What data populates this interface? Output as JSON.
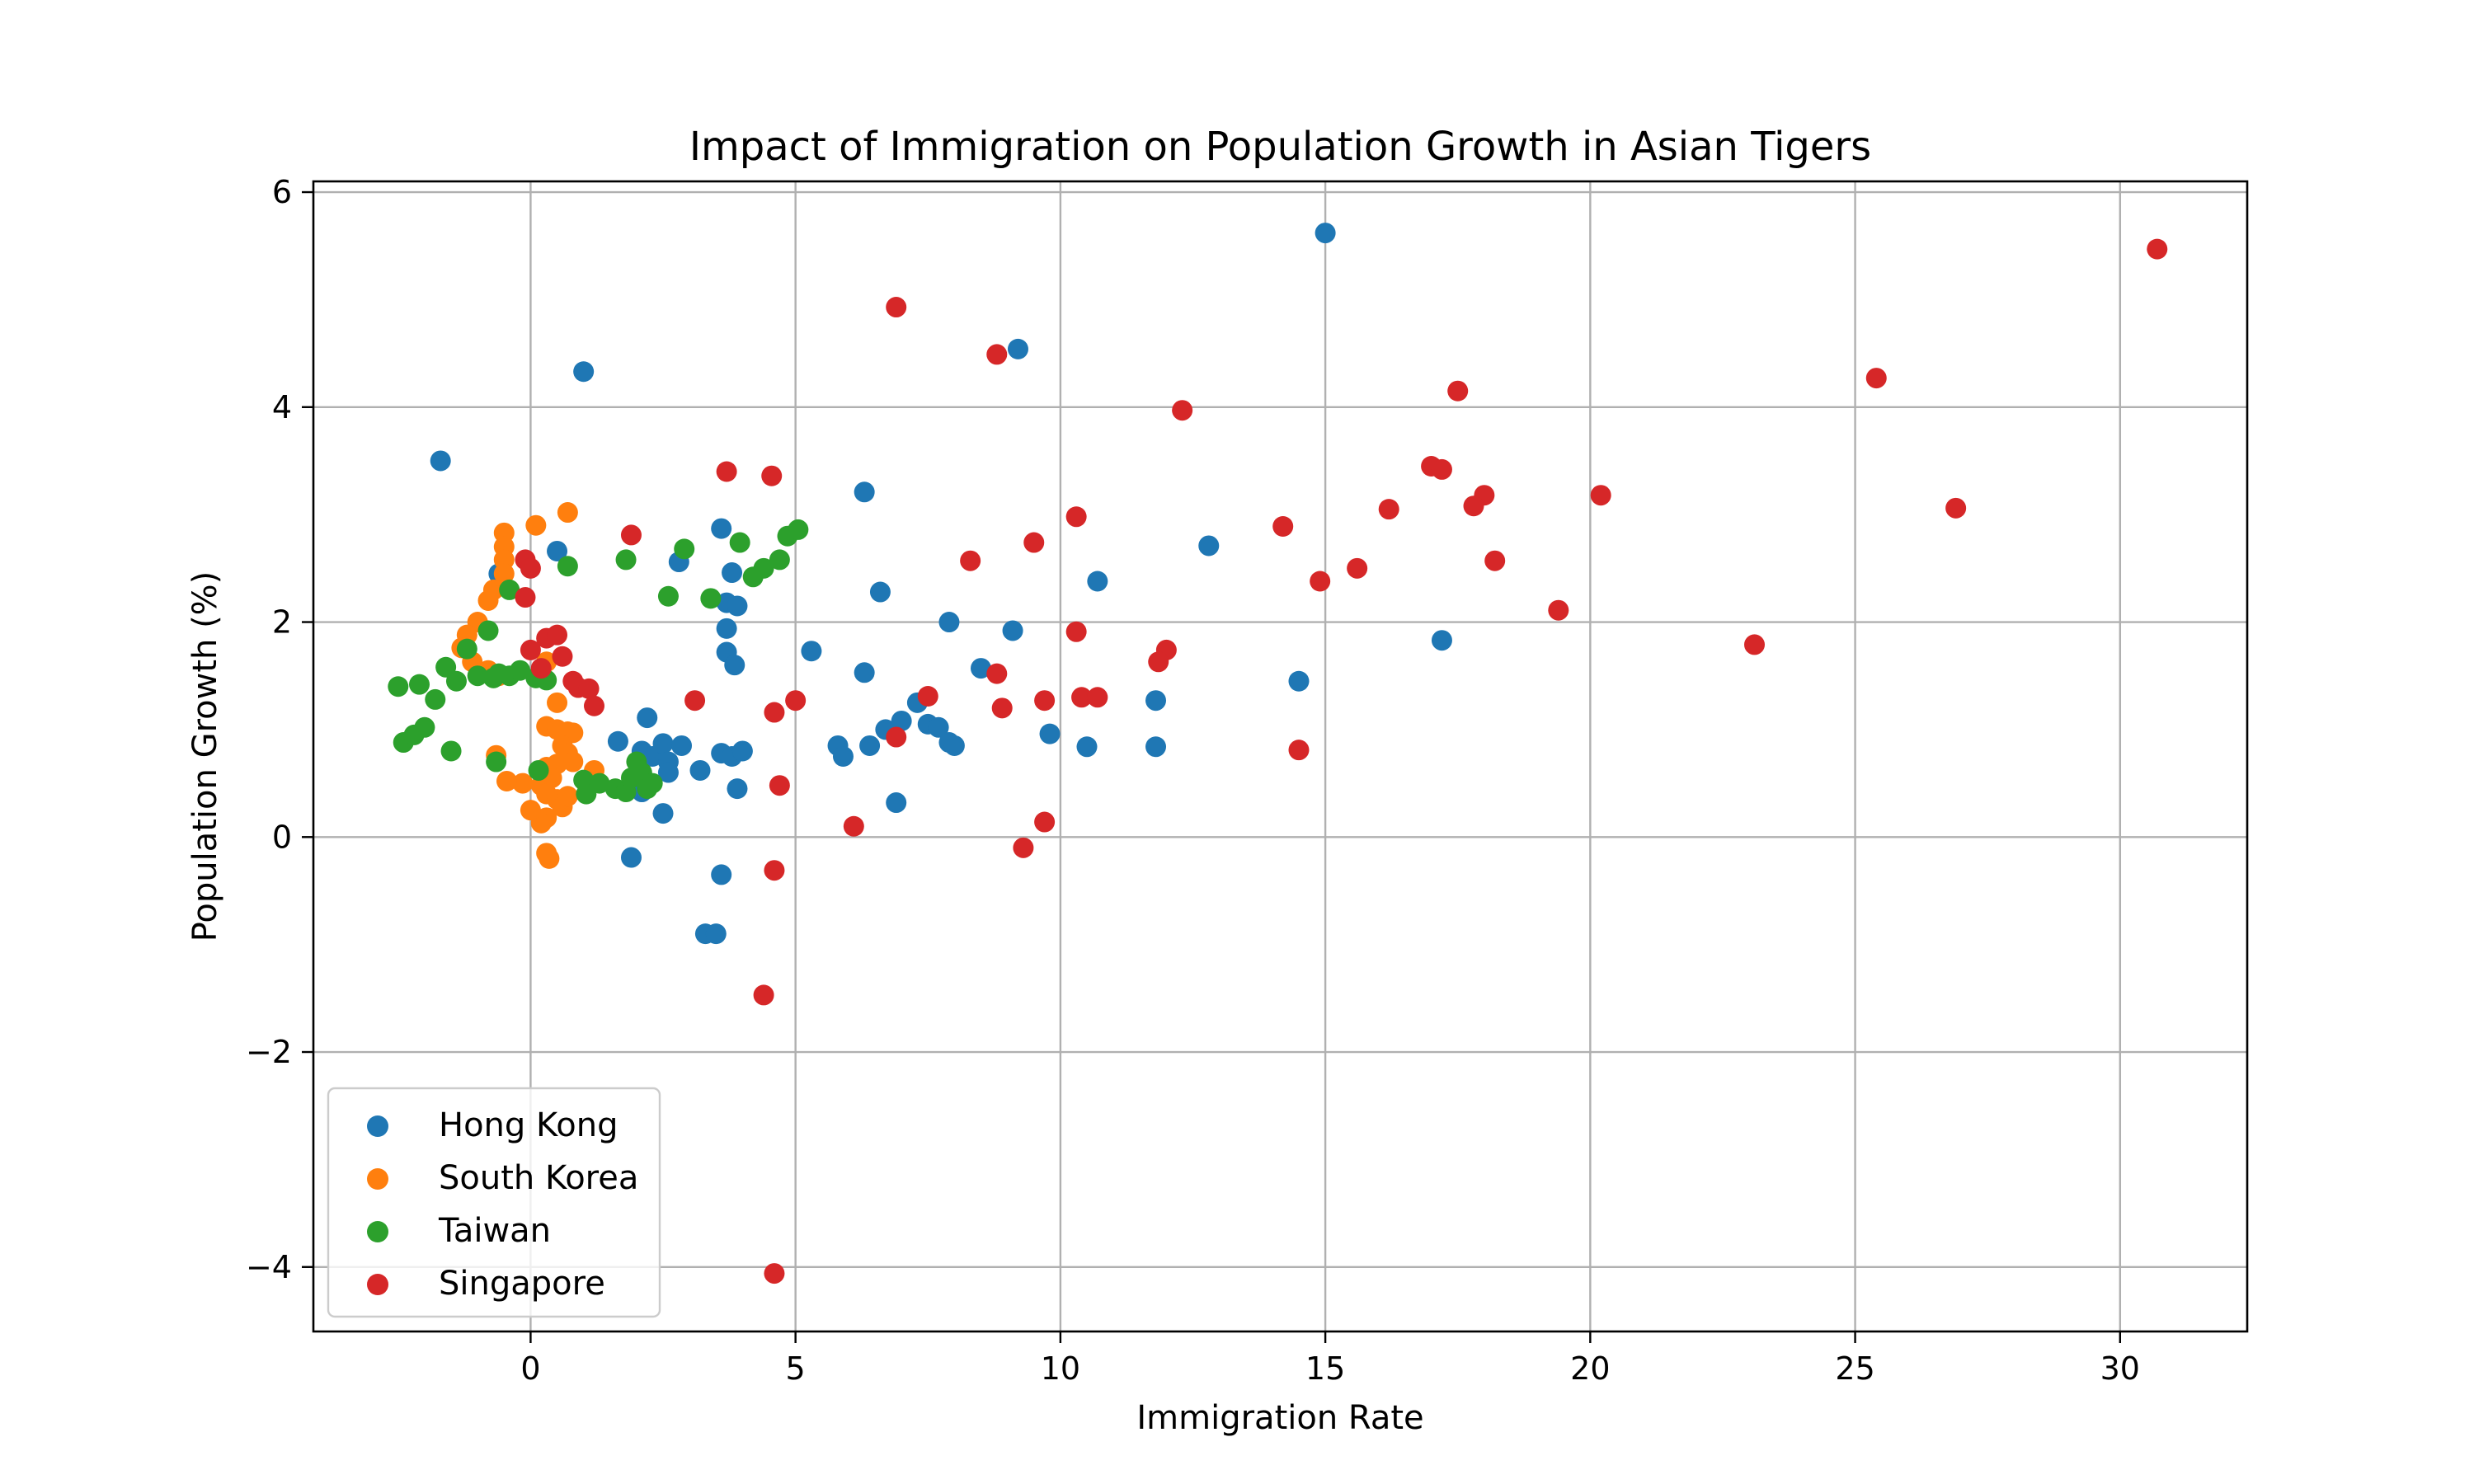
{
  "chart_data": {
    "type": "scatter",
    "title": "Impact of Immigration on Population Growth in Asian Tigers",
    "xlabel": "Immigration Rate",
    "ylabel": "Population Growth (%)",
    "xlim": [
      -4.1,
      32.4
    ],
    "ylim": [
      -4.6,
      6.1
    ],
    "xticks": [
      0,
      5,
      10,
      15,
      20,
      25,
      30
    ],
    "yticks": [
      -4,
      -2,
      0,
      2,
      4,
      6
    ],
    "xtick_labels": [
      "0",
      "5",
      "10",
      "15",
      "20",
      "25",
      "30"
    ],
    "ytick_labels": [
      "−4",
      "−2",
      "0",
      "2",
      "4",
      "6"
    ],
    "grid": true,
    "legend_position": "lower-left",
    "series": [
      {
        "name": "Hong Kong",
        "color": "#1f77b4",
        "points": [
          [
            -1.7,
            3.5
          ],
          [
            1.0,
            4.33
          ],
          [
            15.0,
            5.62
          ],
          [
            9.2,
            4.54
          ],
          [
            -0.6,
            2.45
          ],
          [
            0.5,
            2.66
          ],
          [
            2.8,
            2.56
          ],
          [
            3.6,
            2.87
          ],
          [
            3.8,
            2.46
          ],
          [
            3.7,
            2.18
          ],
          [
            3.9,
            2.15
          ],
          [
            3.7,
            1.94
          ],
          [
            3.7,
            1.72
          ],
          [
            3.85,
            1.6
          ],
          [
            6.3,
            3.21
          ],
          [
            6.6,
            2.28
          ],
          [
            7.9,
            2.0
          ],
          [
            9.1,
            1.92
          ],
          [
            10.7,
            2.38
          ],
          [
            12.8,
            2.71
          ],
          [
            17.2,
            1.83
          ],
          [
            14.5,
            1.45
          ],
          [
            11.8,
            1.27
          ],
          [
            11.8,
            0.84
          ],
          [
            10.5,
            0.84
          ],
          [
            9.8,
            0.96
          ],
          [
            8.5,
            1.57
          ],
          [
            7.3,
            1.25
          ],
          [
            7.5,
            1.05
          ],
          [
            7.7,
            1.02
          ],
          [
            7.9,
            0.88
          ],
          [
            8.0,
            0.85
          ],
          [
            7.0,
            1.08
          ],
          [
            6.7,
            1.0
          ],
          [
            6.4,
            0.85
          ],
          [
            6.3,
            1.53
          ],
          [
            5.3,
            1.73
          ],
          [
            5.8,
            0.85
          ],
          [
            5.9,
            0.75
          ],
          [
            6.9,
            0.32
          ],
          [
            2.2,
            1.11
          ],
          [
            1.65,
            0.89
          ],
          [
            2.1,
            0.8
          ],
          [
            2.3,
            0.75
          ],
          [
            2.5,
            0.87
          ],
          [
            2.6,
            0.7
          ],
          [
            2.6,
            0.6
          ],
          [
            2.5,
            0.22
          ],
          [
            2.85,
            0.85
          ],
          [
            3.2,
            0.62
          ],
          [
            3.6,
            0.78
          ],
          [
            3.8,
            0.75
          ],
          [
            4.0,
            0.8
          ],
          [
            3.9,
            0.45
          ],
          [
            2.1,
            0.42
          ],
          [
            1.9,
            -0.19
          ],
          [
            3.6,
            -0.35
          ],
          [
            3.3,
            -0.9
          ],
          [
            3.5,
            -0.9
          ]
        ]
      },
      {
        "name": "South Korea",
        "color": "#ff7f0e",
        "points": [
          [
            -0.5,
            2.83
          ],
          [
            -0.5,
            2.7
          ],
          [
            -0.5,
            2.58
          ],
          [
            -0.5,
            2.45
          ],
          [
            -0.7,
            2.3
          ],
          [
            -0.8,
            2.2
          ],
          [
            -1.0,
            2.0
          ],
          [
            -1.2,
            1.88
          ],
          [
            -1.3,
            1.76
          ],
          [
            -1.1,
            1.63
          ],
          [
            -0.8,
            1.55
          ],
          [
            -0.6,
            1.5
          ],
          [
            0.1,
            2.9
          ],
          [
            0.7,
            3.02
          ],
          [
            0.3,
            1.63
          ],
          [
            0.5,
            1.25
          ],
          [
            0.3,
            1.03
          ],
          [
            0.5,
            1.0
          ],
          [
            0.7,
            0.98
          ],
          [
            0.8,
            0.97
          ],
          [
            0.6,
            0.85
          ],
          [
            0.7,
            0.78
          ],
          [
            0.8,
            0.7
          ],
          [
            0.5,
            0.68
          ],
          [
            0.3,
            0.65
          ],
          [
            0.4,
            0.55
          ],
          [
            0.2,
            0.48
          ],
          [
            0.3,
            0.4
          ],
          [
            0.5,
            0.35
          ],
          [
            0.6,
            0.28
          ],
          [
            0.3,
            0.18
          ],
          [
            0.2,
            0.13
          ],
          [
            0.0,
            0.25
          ],
          [
            -0.15,
            0.5
          ],
          [
            -0.45,
            0.52
          ],
          [
            -0.65,
            0.76
          ],
          [
            0.3,
            -0.15
          ],
          [
            0.35,
            -0.2
          ],
          [
            0.7,
            0.38
          ],
          [
            1.2,
            0.62
          ]
        ]
      },
      {
        "name": "Taiwan",
        "color": "#2ca02c",
        "points": [
          [
            -2.5,
            1.4
          ],
          [
            -2.1,
            1.42
          ],
          [
            -1.8,
            1.28
          ],
          [
            -1.6,
            1.58
          ],
          [
            -1.4,
            1.45
          ],
          [
            -1.2,
            1.75
          ],
          [
            -1.0,
            1.5
          ],
          [
            -0.7,
            1.48
          ],
          [
            -0.6,
            1.52
          ],
          [
            -0.4,
            1.5
          ],
          [
            -0.2,
            1.55
          ],
          [
            0.1,
            1.48
          ],
          [
            0.3,
            1.46
          ],
          [
            -0.8,
            1.92
          ],
          [
            -0.4,
            2.3
          ],
          [
            0.7,
            2.52
          ],
          [
            1.8,
            2.58
          ],
          [
            2.6,
            2.24
          ],
          [
            2.9,
            2.68
          ],
          [
            3.4,
            2.22
          ],
          [
            3.95,
            2.74
          ],
          [
            4.2,
            2.42
          ],
          [
            4.4,
            2.5
          ],
          [
            4.7,
            2.58
          ],
          [
            4.85,
            2.8
          ],
          [
            5.05,
            2.86
          ],
          [
            -2.4,
            0.88
          ],
          [
            -2.2,
            0.95
          ],
          [
            -2.0,
            1.02
          ],
          [
            -1.5,
            0.8
          ],
          [
            -0.65,
            0.7
          ],
          [
            0.15,
            0.62
          ],
          [
            1.0,
            0.53
          ],
          [
            1.05,
            0.4
          ],
          [
            1.3,
            0.5
          ],
          [
            1.6,
            0.45
          ],
          [
            1.8,
            0.42
          ],
          [
            1.9,
            0.55
          ],
          [
            2.0,
            0.7
          ],
          [
            2.1,
            0.6
          ],
          [
            2.2,
            0.45
          ],
          [
            2.3,
            0.5
          ]
        ]
      },
      {
        "name": "Singapore",
        "color": "#d62728",
        "points": [
          [
            6.9,
            4.93
          ],
          [
            8.8,
            4.49
          ],
          [
            17.5,
            4.15
          ],
          [
            12.3,
            3.97
          ],
          [
            30.7,
            5.47
          ],
          [
            25.4,
            4.27
          ],
          [
            26.9,
            3.06
          ],
          [
            20.2,
            3.18
          ],
          [
            18.0,
            3.18
          ],
          [
            17.0,
            3.45
          ],
          [
            17.2,
            3.42
          ],
          [
            17.8,
            3.08
          ],
          [
            16.2,
            3.05
          ],
          [
            14.2,
            2.89
          ],
          [
            15.6,
            2.5
          ],
          [
            18.2,
            2.57
          ],
          [
            14.9,
            2.38
          ],
          [
            19.4,
            2.11
          ],
          [
            23.1,
            1.79
          ],
          [
            14.5,
            0.81
          ],
          [
            3.7,
            3.4
          ],
          [
            4.55,
            3.36
          ],
          [
            10.3,
            2.98
          ],
          [
            9.5,
            2.74
          ],
          [
            8.3,
            2.57
          ],
          [
            10.3,
            1.91
          ],
          [
            12.0,
            1.74
          ],
          [
            11.85,
            1.63
          ],
          [
            8.8,
            1.52
          ],
          [
            7.5,
            1.31
          ],
          [
            10.4,
            1.3
          ],
          [
            10.7,
            1.3
          ],
          [
            9.7,
            1.27
          ],
          [
            8.9,
            1.2
          ],
          [
            5.0,
            1.27
          ],
          [
            4.6,
            1.16
          ],
          [
            3.1,
            1.27
          ],
          [
            6.9,
            0.93
          ],
          [
            4.7,
            0.48
          ],
          [
            6.1,
            0.1
          ],
          [
            9.7,
            0.14
          ],
          [
            9.3,
            -0.1
          ],
          [
            4.6,
            -0.31
          ],
          [
            4.4,
            -1.47
          ],
          [
            4.6,
            -4.06
          ],
          [
            1.9,
            2.81
          ],
          [
            -0.1,
            2.58
          ],
          [
            0.0,
            2.5
          ],
          [
            -0.1,
            2.23
          ],
          [
            0.3,
            1.85
          ],
          [
            0.5,
            1.88
          ],
          [
            0.6,
            1.68
          ],
          [
            0.0,
            1.74
          ],
          [
            0.2,
            1.57
          ],
          [
            0.8,
            1.45
          ],
          [
            0.9,
            1.39
          ],
          [
            1.1,
            1.38
          ],
          [
            1.2,
            1.22
          ]
        ]
      }
    ]
  }
}
